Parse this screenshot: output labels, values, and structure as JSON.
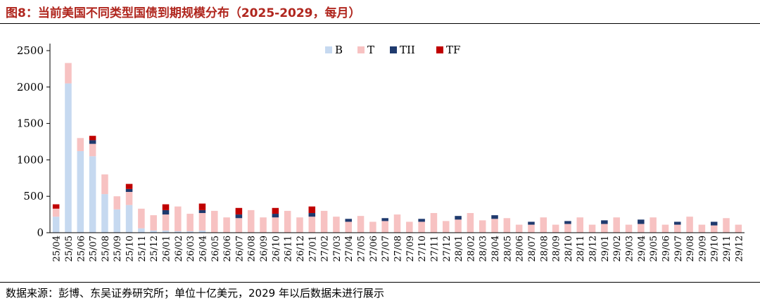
{
  "title": "图8：当前美国不同类型国债到期规模分布（2025-2029，每月）",
  "source": "数据来源：彭博、东吴证券研究所；单位十亿美元，2029 年以后数据未进行展示",
  "colors": {
    "B": "#c6d9f0",
    "T": "#f7c2c2",
    "TII": "#1f3a6e",
    "TF": "#c00000"
  },
  "chart_data": {
    "type": "bar",
    "stacked": true,
    "ylim": [
      0,
      2500
    ],
    "yticks": [
      0,
      500,
      1000,
      1500,
      2000,
      2500
    ],
    "legend_position": "top-center",
    "categories": [
      "25/04",
      "25/05",
      "25/06",
      "25/07",
      "25/08",
      "25/09",
      "25/10",
      "25/11",
      "25/12",
      "26/01",
      "26/02",
      "26/03",
      "26/04",
      "26/05",
      "26/06",
      "26/07",
      "26/08",
      "26/09",
      "26/10",
      "26/11",
      "26/12",
      "27/01",
      "27/02",
      "27/03",
      "27/04",
      "27/05",
      "27/06",
      "27/07",
      "27/08",
      "27/09",
      "27/10",
      "27/11",
      "27/12",
      "28/01",
      "28/02",
      "28/03",
      "28/04",
      "28/05",
      "28/06",
      "28/07",
      "28/08",
      "28/09",
      "28/10",
      "28/11",
      "28/12",
      "29/01",
      "29/02",
      "29/03",
      "29/04",
      "29/05",
      "29/06",
      "29/07",
      "29/08",
      "29/09",
      "29/10",
      "29/11",
      "29/12"
    ],
    "series": [
      {
        "name": "B",
        "values": [
          220,
          2050,
          1120,
          1050,
          530,
          320,
          380,
          60,
          30,
          30,
          20,
          20,
          30,
          0,
          0,
          0,
          0,
          0,
          0,
          0,
          0,
          0,
          0,
          0,
          0,
          0,
          0,
          0,
          0,
          0,
          0,
          0,
          0,
          0,
          0,
          0,
          0,
          0,
          0,
          0,
          0,
          0,
          0,
          0,
          0,
          0,
          0,
          0,
          0,
          0,
          0,
          0,
          0,
          0,
          0,
          0,
          0
        ]
      },
      {
        "name": "T",
        "values": [
          110,
          280,
          180,
          170,
          270,
          180,
          180,
          270,
          210,
          220,
          340,
          240,
          240,
          300,
          210,
          200,
          310,
          210,
          210,
          300,
          210,
          220,
          300,
          220,
          150,
          230,
          150,
          160,
          250,
          150,
          150,
          270,
          160,
          180,
          270,
          170,
          190,
          200,
          110,
          110,
          210,
          110,
          120,
          210,
          110,
          120,
          210,
          110,
          120,
          210,
          110,
          110,
          220,
          110,
          100,
          200,
          110
        ]
      },
      {
        "name": "TII",
        "values": [
          0,
          0,
          0,
          50,
          0,
          0,
          40,
          0,
          0,
          60,
          0,
          0,
          40,
          0,
          0,
          50,
          0,
          0,
          50,
          0,
          0,
          50,
          0,
          0,
          40,
          0,
          0,
          40,
          0,
          0,
          40,
          0,
          0,
          50,
          0,
          0,
          50,
          0,
          0,
          40,
          0,
          0,
          40,
          0,
          0,
          50,
          0,
          0,
          60,
          0,
          0,
          40,
          0,
          0,
          50,
          0,
          0
        ]
      },
      {
        "name": "TF",
        "values": [
          60,
          0,
          0,
          60,
          0,
          0,
          70,
          0,
          0,
          80,
          0,
          0,
          90,
          0,
          0,
          90,
          0,
          0,
          80,
          0,
          0,
          90,
          0,
          0,
          0,
          0,
          0,
          0,
          0,
          0,
          0,
          0,
          0,
          0,
          0,
          0,
          0,
          0,
          0,
          0,
          0,
          0,
          0,
          0,
          0,
          0,
          0,
          0,
          0,
          0,
          0,
          0,
          0,
          0,
          0,
          0,
          0
        ]
      }
    ]
  }
}
